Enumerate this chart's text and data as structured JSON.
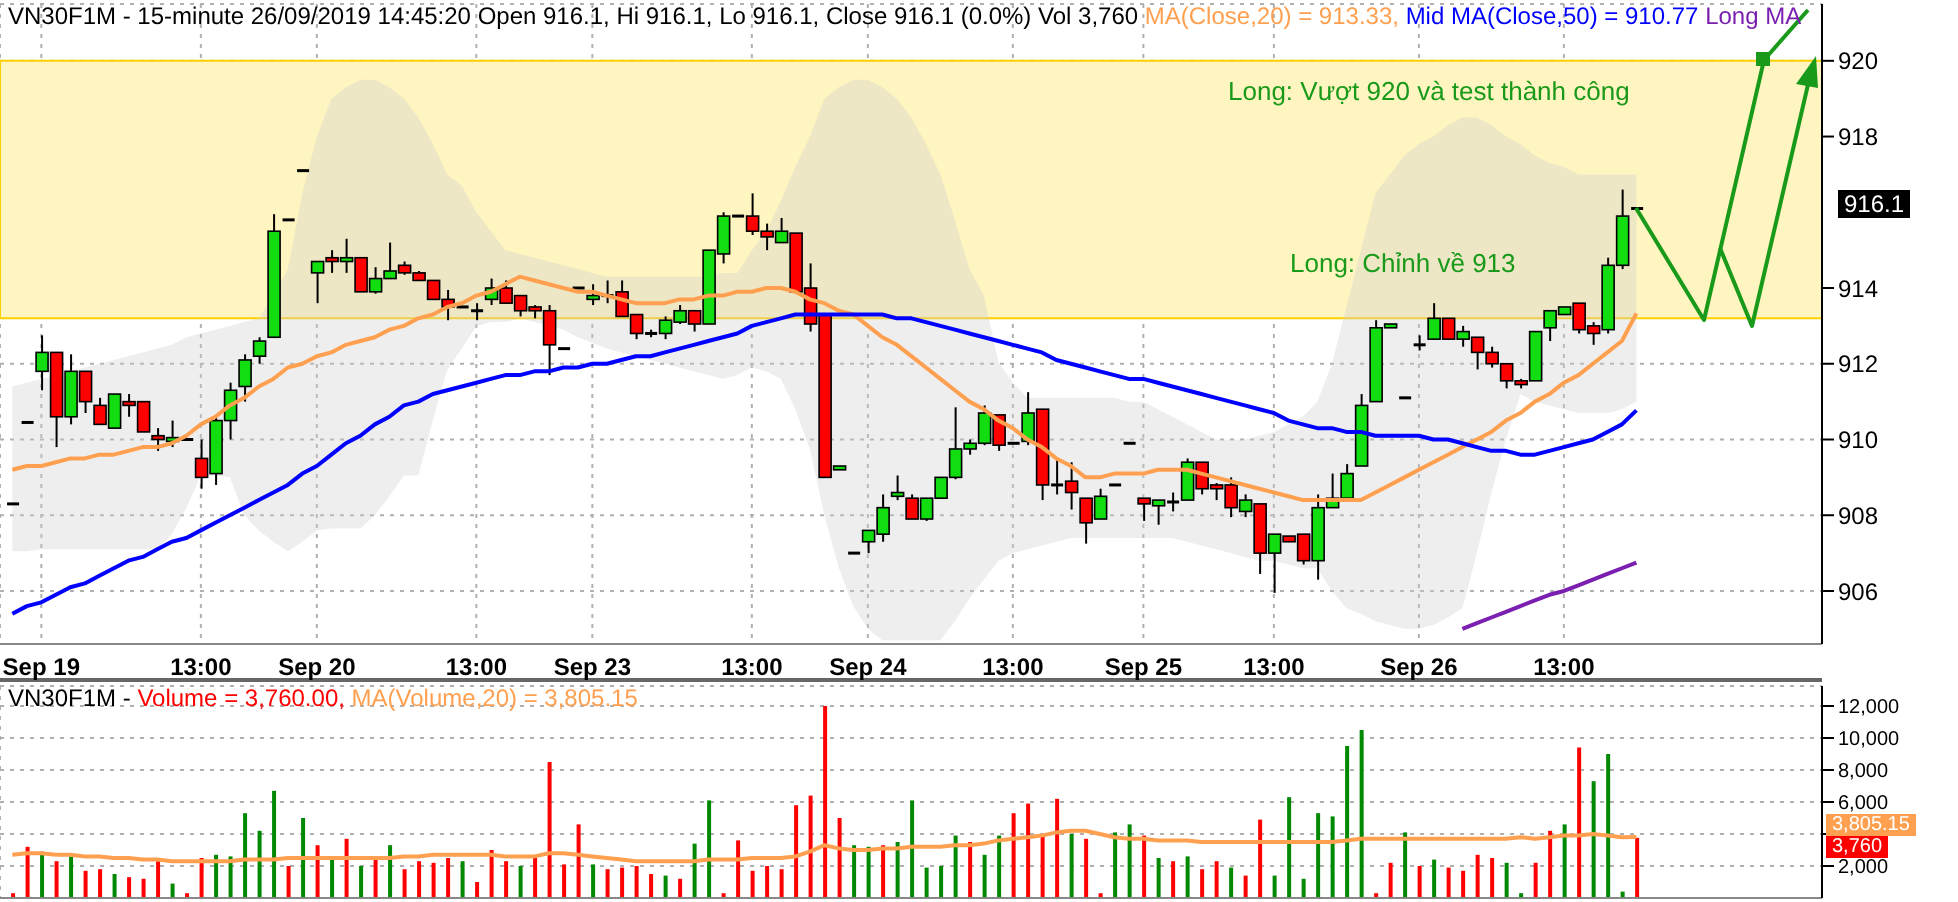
{
  "chart_data": [
    {
      "type": "candlestick",
      "title": "VN30F1M - 15-minute 26/09/2019 14:45:20 Open 916.1, Hi 916.1, Lo 916.1, Close 916.1 (0.0%) Vol 3,760",
      "legend": "top",
      "grid": true,
      "categories": [
        null,
        null,
        "Sep 19",
        null,
        null,
        null,
        null,
        null,
        null,
        null,
        null,
        null,
        null,
        "13:00",
        null,
        null,
        null,
        null,
        null,
        null,
        null,
        "Sep 20",
        null,
        null,
        null,
        null,
        null,
        null,
        null,
        null,
        null,
        null,
        "13:00",
        null,
        null,
        null,
        null,
        null,
        null,
        null,
        "Sep 23",
        null,
        null,
        null,
        null,
        null,
        null,
        null,
        null,
        null,
        null,
        "13:00",
        null,
        null,
        null,
        null,
        null,
        null,
        null,
        "Sep 24",
        null,
        null,
        null,
        null,
        null,
        null,
        null,
        null,
        null,
        "13:00",
        null,
        null,
        null,
        null,
        null,
        null,
        null,
        null,
        "Sep 25",
        null,
        null,
        null,
        null,
        null,
        null,
        null,
        null,
        "13:00",
        null,
        null,
        null,
        null,
        null,
        null,
        null,
        null,
        null,
        "Sep 26",
        null,
        null,
        null,
        null,
        null,
        null,
        null,
        null,
        null,
        "13:00",
        null,
        null,
        null,
        null,
        null
      ],
      "ohlc": [
        [
          908.3,
          908.3,
          908.3,
          908.3
        ],
        [
          910.45,
          910.45,
          910.45,
          910.45
        ],
        [
          911.8,
          912.75,
          911.3,
          912.3
        ],
        [
          912.3,
          912.3,
          909.8,
          910.6
        ],
        [
          910.6,
          912.25,
          910.4,
          911.8
        ],
        [
          911.8,
          911.8,
          910.7,
          911.0
        ],
        [
          910.9,
          911.1,
          910.4,
          910.4
        ],
        [
          910.3,
          911.2,
          910.3,
          911.2
        ],
        [
          911.0,
          911.2,
          910.6,
          910.9
        ],
        [
          911.0,
          911.0,
          910.2,
          910.2
        ],
        [
          910.1,
          910.3,
          909.7,
          910.0
        ],
        [
          909.95,
          910.5,
          909.8,
          910.05
        ],
        [
          910.0,
          910.0,
          910.0,
          910.0
        ],
        [
          909.5,
          910.0,
          908.7,
          909.0
        ],
        [
          909.1,
          910.6,
          908.8,
          910.5
        ],
        [
          910.5,
          911.5,
          910.0,
          911.3
        ],
        [
          911.4,
          912.25,
          911.0,
          912.1
        ],
        [
          912.2,
          912.7,
          912.0,
          912.6
        ],
        [
          912.7,
          915.95,
          912.7,
          915.5
        ],
        [
          915.8,
          915.8,
          915.8,
          915.8
        ],
        [
          917.1,
          917.1,
          917.1,
          917.1
        ],
        [
          914.4,
          914.7,
          913.6,
          914.7
        ],
        [
          914.8,
          915.0,
          914.4,
          914.7
        ],
        [
          914.7,
          915.3,
          914.4,
          914.8
        ],
        [
          914.8,
          914.8,
          913.9,
          913.9
        ],
        [
          913.9,
          914.55,
          913.85,
          914.25
        ],
        [
          914.25,
          915.2,
          914.25,
          914.45
        ],
        [
          914.6,
          914.7,
          914.35,
          914.4
        ],
        [
          914.4,
          914.45,
          914.2,
          914.2
        ],
        [
          914.2,
          914.2,
          913.7,
          913.7
        ],
        [
          913.7,
          913.95,
          913.15,
          913.5
        ],
        [
          913.5,
          913.5,
          913.5,
          913.5
        ],
        [
          913.4,
          913.6,
          913.15,
          913.4
        ],
        [
          913.7,
          914.25,
          913.55,
          914.0
        ],
        [
          914.0,
          914.2,
          913.6,
          913.6
        ],
        [
          913.8,
          913.8,
          913.25,
          913.4
        ],
        [
          913.5,
          913.55,
          913.2,
          913.4
        ],
        [
          913.4,
          913.55,
          911.7,
          912.5
        ],
        [
          912.4,
          912.4,
          912.4,
          912.4
        ],
        [
          914.0,
          914.0,
          914.0,
          914.0
        ],
        [
          913.7,
          914.1,
          913.55,
          913.8
        ],
        [
          913.8,
          914.2,
          913.6,
          913.8
        ],
        [
          913.9,
          914.2,
          913.25,
          913.25
        ],
        [
          913.3,
          913.3,
          912.65,
          912.8
        ],
        [
          912.8,
          912.9,
          912.7,
          912.8
        ],
        [
          912.8,
          913.25,
          912.65,
          913.15
        ],
        [
          913.1,
          913.55,
          913.05,
          913.4
        ],
        [
          913.4,
          913.4,
          912.85,
          913.05
        ],
        [
          913.05,
          915.0,
          913.05,
          915.0
        ],
        [
          914.9,
          916.0,
          914.65,
          915.9
        ],
        [
          915.9,
          915.9,
          915.9,
          915.9
        ],
        [
          915.9,
          916.5,
          915.4,
          915.5
        ],
        [
          915.5,
          915.7,
          915.0,
          915.35
        ],
        [
          915.2,
          915.85,
          915.2,
          915.5
        ],
        [
          915.45,
          915.45,
          913.9,
          913.9
        ],
        [
          914.0,
          914.65,
          912.85,
          913.05
        ],
        [
          913.3,
          913.3,
          909.0,
          909.0
        ],
        [
          909.2,
          909.3,
          909.2,
          909.3
        ],
        [
          907.0,
          907.0,
          907.0,
          907.0
        ],
        [
          907.3,
          907.6,
          907.0,
          907.6
        ],
        [
          907.5,
          908.55,
          907.3,
          908.2
        ],
        [
          908.5,
          909.05,
          908.4,
          908.6
        ],
        [
          908.45,
          908.55,
          907.9,
          907.9
        ],
        [
          907.9,
          908.45,
          907.85,
          908.45
        ],
        [
          908.45,
          909.0,
          908.45,
          909.0
        ],
        [
          909.0,
          910.85,
          908.95,
          909.75
        ],
        [
          909.75,
          910.0,
          909.6,
          909.9
        ],
        [
          909.9,
          910.9,
          909.85,
          910.7
        ],
        [
          910.65,
          910.65,
          909.7,
          909.85
        ],
        [
          909.9,
          909.9,
          909.9,
          909.9
        ],
        [
          909.95,
          911.25,
          909.85,
          910.7
        ],
        [
          910.8,
          910.8,
          908.4,
          908.8
        ],
        [
          908.8,
          909.5,
          908.55,
          908.8
        ],
        [
          908.9,
          909.4,
          908.15,
          908.6
        ],
        [
          908.45,
          908.45,
          907.25,
          907.8
        ],
        [
          907.9,
          908.7,
          907.9,
          908.5
        ],
        [
          908.8,
          908.8,
          908.8,
          908.8
        ],
        [
          909.9,
          909.9,
          909.9,
          909.9
        ],
        [
          908.45,
          908.45,
          907.85,
          908.3
        ],
        [
          908.25,
          908.4,
          907.75,
          908.4
        ],
        [
          908.35,
          908.6,
          908.1,
          908.35
        ],
        [
          908.4,
          909.5,
          908.4,
          909.4
        ],
        [
          909.4,
          909.4,
          908.55,
          908.7
        ],
        [
          908.8,
          908.85,
          908.4,
          908.7
        ],
        [
          908.8,
          909.0,
          907.95,
          908.2
        ],
        [
          908.1,
          908.55,
          907.95,
          908.4
        ],
        [
          908.3,
          908.3,
          906.45,
          907.0
        ],
        [
          907.0,
          907.5,
          905.95,
          907.5
        ],
        [
          907.45,
          907.45,
          907.3,
          907.3
        ],
        [
          907.5,
          907.5,
          906.7,
          906.8
        ],
        [
          906.8,
          908.55,
          906.3,
          908.2
        ],
        [
          908.2,
          909.1,
          908.2,
          908.45
        ],
        [
          908.45,
          909.35,
          908.45,
          909.1
        ],
        [
          909.3,
          911.2,
          909.3,
          910.9
        ],
        [
          911.0,
          913.15,
          911.0,
          912.95
        ],
        [
          912.95,
          913.05,
          912.95,
          913.05
        ],
        [
          911.1,
          911.1,
          911.1,
          911.1
        ],
        [
          912.5,
          912.75,
          912.35,
          912.5
        ],
        [
          912.65,
          913.6,
          912.65,
          913.2
        ],
        [
          913.2,
          913.2,
          912.65,
          912.65
        ],
        [
          912.65,
          913.0,
          912.45,
          912.85
        ],
        [
          912.7,
          912.7,
          911.85,
          912.3
        ],
        [
          912.3,
          912.45,
          911.9,
          912.0
        ],
        [
          912.0,
          912.0,
          911.35,
          911.55
        ],
        [
          911.55,
          911.6,
          911.35,
          911.45
        ],
        [
          911.55,
          912.85,
          911.55,
          912.85
        ],
        [
          912.95,
          913.4,
          912.6,
          913.4
        ],
        [
          913.3,
          913.5,
          913.3,
          913.5
        ],
        [
          913.6,
          913.6,
          912.8,
          912.9
        ],
        [
          913.0,
          913.1,
          912.5,
          912.8
        ],
        [
          912.9,
          914.8,
          912.8,
          914.6
        ],
        [
          914.6,
          916.6,
          914.5,
          915.9
        ],
        [
          916.1,
          916.1,
          916.1,
          916.1
        ]
      ],
      "colors": [
        "#000000",
        "#000000",
        "#11dd11",
        "#ff0000",
        "#11dd11",
        "#ff0000",
        "#ff0000",
        "#11dd11",
        "#ff0000",
        "#ff0000",
        "#ff0000",
        "#11dd11",
        "#000000",
        "#ff0000",
        "#11dd11",
        "#11dd11",
        "#11dd11",
        "#11dd11",
        "#11dd11",
        "#000000",
        "#000000",
        "#11dd11",
        "#ff0000",
        "#11dd11",
        "#ff0000",
        "#11dd11",
        "#11dd11",
        "#ff0000",
        "#ff0000",
        "#ff0000",
        "#ff0000",
        "#000000",
        "#000000",
        "#11dd11",
        "#ff0000",
        "#ff0000",
        "#ff0000",
        "#ff0000",
        "#000000",
        "#000000",
        "#11dd11",
        "#000000",
        "#ff0000",
        "#ff0000",
        "#000000",
        "#11dd11",
        "#11dd11",
        "#ff0000",
        "#11dd11",
        "#11dd11",
        "#000000",
        "#ff0000",
        "#ff0000",
        "#11dd11",
        "#ff0000",
        "#ff0000",
        "#ff0000",
        "#11dd11",
        "#000000",
        "#11dd11",
        "#11dd11",
        "#11dd11",
        "#ff0000",
        "#11dd11",
        "#11dd11",
        "#11dd11",
        "#11dd11",
        "#11dd11",
        "#ff0000",
        "#000000",
        "#11dd11",
        "#ff0000",
        "#000000",
        "#ff0000",
        "#ff0000",
        "#11dd11",
        "#000000",
        "#000000",
        "#ff0000",
        "#11dd11",
        "#000000",
        "#11dd11",
        "#ff0000",
        "#ff0000",
        "#ff0000",
        "#11dd11",
        "#ff0000",
        "#11dd11",
        "#ff0000",
        "#ff0000",
        "#11dd11",
        "#11dd11",
        "#11dd11",
        "#11dd11",
        "#11dd11",
        "#11dd11",
        "#000000",
        "#000000",
        "#11dd11",
        "#ff0000",
        "#11dd11",
        "#ff0000",
        "#ff0000",
        "#ff0000",
        "#ff0000",
        "#11dd11",
        "#11dd11",
        "#11dd11",
        "#ff0000",
        "#ff0000",
        "#11dd11",
        "#11dd11",
        "#000000"
      ],
      "series": [
        {
          "type": "line",
          "name": "MA(Close,20) = 913.33,",
          "color": "#ffa050",
          "values": [
            909.2,
            909.3,
            909.3,
            909.4,
            909.5,
            909.5,
            909.6,
            909.6,
            909.7,
            909.8,
            909.8,
            909.9,
            910.1,
            910.4,
            910.6,
            910.9,
            911.1,
            911.4,
            911.6,
            911.9,
            912.0,
            912.2,
            912.3,
            912.5,
            912.6,
            912.7,
            912.9,
            913.0,
            913.2,
            913.3,
            913.5,
            913.6,
            913.8,
            913.9,
            914.1,
            914.3,
            914.2,
            914.1,
            914.0,
            913.9,
            913.9,
            913.8,
            913.7,
            913.6,
            913.6,
            913.6,
            913.7,
            913.7,
            913.8,
            913.8,
            913.9,
            913.9,
            914.0,
            914.0,
            913.9,
            913.7,
            913.6,
            913.4,
            913.3,
            913.0,
            912.7,
            912.5,
            912.2,
            911.9,
            911.6,
            911.3,
            911.0,
            910.8,
            910.5,
            910.3,
            910.0,
            909.8,
            909.5,
            909.3,
            909.0,
            909.0,
            909.1,
            909.1,
            909.1,
            909.2,
            909.2,
            909.2,
            909.1,
            909.0,
            908.9,
            908.8,
            908.7,
            908.6,
            908.5,
            908.4,
            908.4,
            908.4,
            908.4,
            908.4,
            908.6,
            908.8,
            909.0,
            909.2,
            909.4,
            909.6,
            909.8,
            910.0,
            910.2,
            910.5,
            910.7,
            911.0,
            911.2,
            911.5,
            911.7,
            912.0,
            912.3,
            912.6,
            913.33
          ],
          "upper": [
            911.4,
            911.5,
            911.6,
            911.7,
            911.8,
            911.9,
            912.0,
            912.1,
            912.2,
            912.3,
            912.4,
            912.5,
            912.7,
            912.8,
            912.9,
            913.0,
            913.1,
            913.2,
            913.8,
            914.5,
            916.5,
            918.0,
            919.0,
            919.3,
            919.5,
            919.5,
            919.3,
            919.0,
            918.5,
            917.8,
            917.0,
            916.7,
            916.0,
            915.5,
            915.0,
            914.9,
            914.8,
            914.7,
            914.6,
            914.5,
            914.4,
            914.3,
            914.3,
            914.3,
            914.3,
            914.3,
            914.3,
            914.3,
            914.3,
            914.4,
            914.4,
            915.0,
            915.5,
            916.3,
            917.2,
            918.0,
            919.0,
            919.3,
            919.5,
            919.5,
            919.3,
            919.0,
            918.5,
            917.8,
            917.0,
            915.8,
            914.5,
            913.8,
            912.05,
            911.5,
            911.1,
            911.1,
            911.1,
            911.1,
            911.1,
            911.1,
            911.1,
            911.0,
            911.0,
            910.8,
            910.6,
            910.4,
            910.2,
            910.0,
            910.0,
            910.0,
            910.1,
            910.2,
            910.4,
            910.6,
            911.0,
            912.0,
            913.5,
            915.0,
            916.5,
            917.0,
            917.5,
            917.8,
            918.0,
            918.3,
            918.5,
            918.5,
            918.3,
            918.0,
            917.8,
            917.5,
            917.3,
            917.2,
            917.0,
            917.0,
            917.0,
            917.0,
            917.0
          ],
          "lower": [
            907.05,
            907.05,
            907.1,
            907.1,
            907.1,
            907.1,
            907.1,
            907.1,
            907.1,
            907.1,
            907.1,
            907.5,
            908.2,
            909.05,
            909.05,
            909.0,
            908.0,
            907.6,
            907.3,
            907.05,
            907.3,
            907.6,
            907.65,
            907.65,
            907.65,
            908.0,
            908.5,
            909.05,
            909.05,
            910.5,
            911.85,
            912.4,
            913.0,
            913.1,
            913.1,
            913.2,
            913.1,
            913.0,
            912.9,
            912.7,
            912.55,
            912.4,
            912.3,
            912.2,
            912.1,
            912.0,
            911.9,
            911.8,
            911.7,
            911.6,
            911.7,
            911.9,
            911.8,
            911.6,
            910.8,
            909.75,
            908.0,
            906.6,
            905.6,
            905.0,
            904.7,
            904.7,
            904.7,
            904.7,
            904.7,
            905.2,
            905.8,
            906.3,
            906.8,
            907.0,
            907.1,
            907.2,
            907.3,
            907.4,
            907.4,
            907.4,
            907.4,
            907.4,
            907.4,
            907.4,
            907.4,
            907.3,
            907.2,
            907.1,
            907.0,
            906.9,
            906.8,
            906.8,
            906.7,
            906.6,
            906.6,
            906.0,
            905.55,
            905.4,
            905.2,
            905.1,
            905.0,
            905.0,
            905.1,
            905.3,
            905.55,
            907.0,
            908.6,
            910.0,
            911.2,
            911.0,
            910.9,
            910.8,
            910.7,
            910.7,
            910.7,
            910.8,
            911.0
          ]
        },
        {
          "type": "line",
          "name": "Mid MA(Close,50) = 910.77",
          "color": "#0000ff",
          "values": [
            905.4,
            905.6,
            905.7,
            905.9,
            906.1,
            906.2,
            906.4,
            906.6,
            906.8,
            906.9,
            907.1,
            907.3,
            907.4,
            907.6,
            907.8,
            908.0,
            908.2,
            908.4,
            908.6,
            908.8,
            909.1,
            909.3,
            909.6,
            909.9,
            910.1,
            910.4,
            910.6,
            910.9,
            911.0,
            911.2,
            911.3,
            911.4,
            911.5,
            911.6,
            911.7,
            911.7,
            911.8,
            911.8,
            911.9,
            911.9,
            912.0,
            912.0,
            912.1,
            912.2,
            912.2,
            912.3,
            912.4,
            912.5,
            912.6,
            912.7,
            912.8,
            913.0,
            913.1,
            913.2,
            913.3,
            913.3,
            913.3,
            913.3,
            913.3,
            913.3,
            913.3,
            913.2,
            913.2,
            913.1,
            913.0,
            912.9,
            912.8,
            912.7,
            912.6,
            912.5,
            912.4,
            912.3,
            912.1,
            912.0,
            911.9,
            911.8,
            911.7,
            911.6,
            911.6,
            911.5,
            911.4,
            911.3,
            911.2,
            911.1,
            911.0,
            910.9,
            910.8,
            910.7,
            910.5,
            910.4,
            910.3,
            910.3,
            910.2,
            910.2,
            910.1,
            910.1,
            910.1,
            910.1,
            910.0,
            910.0,
            909.9,
            909.8,
            909.7,
            909.7,
            909.6,
            909.6,
            909.7,
            909.8,
            909.9,
            910.0,
            910.2,
            910.4,
            910.77
          ]
        },
        {
          "type": "line",
          "name": "Long MA",
          "color": "#7a1fb0",
          "values": [
            null,
            null,
            null,
            null,
            null,
            null,
            null,
            null,
            null,
            null,
            null,
            null,
            null,
            null,
            null,
            null,
            null,
            null,
            null,
            null,
            null,
            null,
            null,
            null,
            null,
            null,
            null,
            null,
            null,
            null,
            null,
            null,
            null,
            null,
            null,
            null,
            null,
            null,
            null,
            null,
            null,
            null,
            null,
            null,
            null,
            null,
            null,
            null,
            null,
            null,
            null,
            null,
            null,
            null,
            null,
            null,
            null,
            null,
            null,
            null,
            null,
            null,
            null,
            null,
            null,
            null,
            null,
            null,
            null,
            null,
            null,
            null,
            null,
            null,
            null,
            null,
            null,
            null,
            null,
            null,
            null,
            null,
            null,
            null,
            null,
            null,
            null,
            null,
            null,
            null,
            null,
            null,
            null,
            null,
            null,
            null,
            null,
            null,
            null,
            null,
            905.0,
            905.15,
            905.3,
            905.45,
            905.6,
            905.75,
            905.9,
            906.0,
            906.15,
            906.3,
            906.45,
            906.6,
            906.75
          ]
        }
      ],
      "ylim": [
        904.6,
        921.5
      ],
      "yticks": [
        906,
        908,
        910,
        912,
        914,
        918,
        920
      ],
      "bands": [
        {
          "axis": "y",
          "from": 913.2,
          "to": 920,
          "color": "#fff5c0"
        }
      ],
      "annotations": [
        "Long: Vượt 920 và test thành công",
        "Long: Chỉnh về 913",
        "916.1"
      ]
    },
    {
      "type": "bar",
      "title": "VN30F1M -",
      "legend": "top left",
      "grid": true,
      "tick_labels": "y",
      "categories": [
        null,
        null,
        null,
        null,
        null,
        null,
        null,
        null,
        null,
        null,
        null,
        null,
        null,
        null,
        null,
        null,
        null,
        null,
        null,
        null,
        null,
        null,
        null,
        null,
        null,
        null,
        null,
        null,
        null,
        null,
        null,
        null,
        null,
        null,
        null,
        null,
        null,
        null,
        null,
        null,
        null,
        null,
        null,
        null,
        null,
        null,
        null,
        null,
        null,
        null,
        null,
        null,
        null,
        null,
        null,
        null,
        null,
        null,
        null,
        null,
        null,
        null,
        null,
        null,
        null,
        null,
        null,
        null,
        null,
        null,
        null,
        null,
        null,
        null,
        null,
        null,
        null,
        null,
        null,
        null,
        null,
        null,
        null,
        null,
        null,
        null,
        null,
        null,
        null,
        null,
        null,
        null,
        null,
        null,
        null,
        null,
        null,
        null,
        null,
        null,
        null,
        null,
        null,
        null,
        null,
        null,
        null,
        null,
        null,
        null,
        null,
        null,
        null
      ],
      "series": [
        {
          "type": "bar",
          "name": "Volume = 3,760.00,",
          "color": "#ff0000",
          "values": [
            300,
            3200,
            2900,
            2300,
            2600,
            1700,
            1800,
            1500,
            1300,
            1200,
            2300,
            900,
            300,
            2500,
            2700,
            2600,
            5300,
            4200,
            6700,
            2000,
            5000,
            3300,
            2500,
            3700,
            2000,
            2400,
            3300,
            1800,
            2300,
            2200,
            2500,
            2300,
            1000,
            3000,
            2300,
            2000,
            2500,
            8500,
            2100,
            4600,
            2100,
            1800,
            1900,
            2000,
            1500,
            1400,
            1200,
            3400,
            6100,
            300,
            3600,
            1700,
            2000,
            1800,
            5800,
            6400,
            12000,
            5000,
            3300,
            3200,
            3300,
            3500,
            6100,
            1900,
            2000,
            3900,
            3500,
            2700,
            3900,
            5300,
            5900,
            4000,
            6200,
            4000,
            3700,
            300,
            4100,
            4600,
            3900,
            2500,
            2300,
            2600,
            1800,
            2300,
            1900,
            1400,
            4900,
            1400,
            6300,
            1200,
            5300,
            5100,
            9500,
            10500,
            300,
            2200,
            4100,
            2000,
            2400,
            1900,
            1700,
            2700,
            2500,
            2200,
            300,
            2200,
            4200,
            4600,
            9400,
            7300,
            9000,
            400,
            3760
          ],
          "colors": [
            "#ff0000",
            "#ff0000",
            "#008800",
            "#ff0000",
            "#008800",
            "#ff0000",
            "#ff0000",
            "#008800",
            "#ff0000",
            "#ff0000",
            "#ff0000",
            "#008800",
            "#ff0000",
            "#ff0000",
            "#008800",
            "#008800",
            "#008800",
            "#008800",
            "#008800",
            "#ff0000",
            "#008800",
            "#ff0000",
            "#008800",
            "#ff0000",
            "#008800",
            "#ff0000",
            "#008800",
            "#ff0000",
            "#ff0000",
            "#ff0000",
            "#ff0000",
            "#008800",
            "#ff0000",
            "#ff0000",
            "#ff0000",
            "#008800",
            "#ff0000",
            "#ff0000",
            "#ff0000",
            "#ff0000",
            "#008800",
            "#ff0000",
            "#ff0000",
            "#ff0000",
            "#ff0000",
            "#008800",
            "#ff0000",
            "#008800",
            "#008800",
            "#ff0000",
            "#ff0000",
            "#ff0000",
            "#ff0000",
            "#ff0000",
            "#ff0000",
            "#ff0000",
            "#ff0000",
            "#ff0000",
            "#008800",
            "#008800",
            "#ff0000",
            "#008800",
            "#008800",
            "#008800",
            "#008800",
            "#008800",
            "#ff0000",
            "#008800",
            "#008800",
            "#ff0000",
            "#ff0000",
            "#ff0000",
            "#ff0000",
            "#008800",
            "#ff0000",
            "#ff0000",
            "#008800",
            "#008800",
            "#ff0000",
            "#008800",
            "#ff0000",
            "#008800",
            "#ff0000",
            "#ff0000",
            "#008800",
            "#ff0000",
            "#ff0000",
            "#008800",
            "#008800",
            "#008800",
            "#008800",
            "#008800",
            "#008800",
            "#008800",
            "#ff0000",
            "#ff0000",
            "#008800",
            "#ff0000",
            "#008800",
            "#ff0000",
            "#ff0000",
            "#ff0000",
            "#ff0000",
            "#008800",
            "#008800",
            "#ff0000",
            "#ff0000",
            "#008800",
            "#ff0000",
            "#008800",
            "#008800",
            "#008800",
            "#ff0000"
          ]
        },
        {
          "type": "line",
          "name": "MA(Volume,20) = 3,805.15",
          "color": "#ffa050",
          "values": [
            2700,
            2800,
            2800,
            2700,
            2700,
            2600,
            2600,
            2500,
            2500,
            2400,
            2400,
            2300,
            2300,
            2300,
            2300,
            2300,
            2400,
            2400,
            2400,
            2500,
            2500,
            2500,
            2500,
            2500,
            2500,
            2500,
            2500,
            2600,
            2600,
            2700,
            2700,
            2700,
            2700,
            2700,
            2600,
            2600,
            2600,
            2800,
            2800,
            2700,
            2600,
            2500,
            2400,
            2300,
            2300,
            2300,
            2300,
            2300,
            2400,
            2400,
            2400,
            2500,
            2500,
            2500,
            2600,
            2900,
            3300,
            3100,
            3000,
            3000,
            3100,
            3100,
            3200,
            3200,
            3200,
            3300,
            3300,
            3400,
            3600,
            3700,
            3800,
            3900,
            4100,
            4200,
            4200,
            4000,
            3800,
            3700,
            3700,
            3600,
            3600,
            3600,
            3500,
            3500,
            3500,
            3500,
            3500,
            3500,
            3500,
            3500,
            3500,
            3500,
            3600,
            3700,
            3700,
            3700,
            3700,
            3700,
            3700,
            3700,
            3700,
            3700,
            3700,
            3700,
            3800,
            3700,
            3800,
            3900,
            3900,
            4000,
            3900,
            3800,
            3805.15
          ]
        }
      ],
      "ylim": [
        0,
        13250
      ],
      "yticks": [
        {
          "value": 2000,
          "label": "2,000"
        },
        {
          "value": 4000,
          "label": null
        },
        {
          "value": 6000,
          "label": "6,000"
        },
        {
          "value": 8000,
          "label": "8,000"
        },
        {
          "value": 10000,
          "label": "10,000"
        },
        {
          "value": 12000,
          "label": "12,000"
        }
      ],
      "annotations": [
        "3,805.15",
        "3,760"
      ]
    }
  ]
}
